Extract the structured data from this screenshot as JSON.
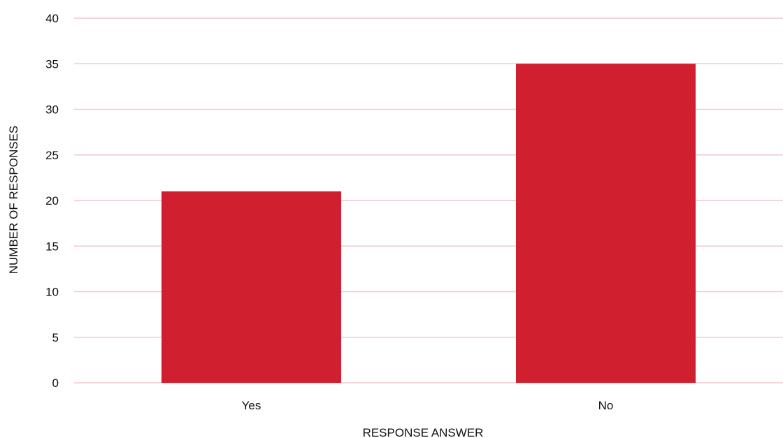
{
  "chart_data": {
    "type": "bar",
    "categories": [
      "Yes",
      "No"
    ],
    "values": [
      21,
      35
    ],
    "xlabel": "RESPONSE ANSWER",
    "ylabel": "NUMBER OF RESPONSES",
    "ylim": [
      0,
      40
    ],
    "yticks": [
      0,
      5,
      10,
      15,
      20,
      25,
      30,
      35,
      40
    ],
    "grid": true,
    "legend": "none",
    "colors": {
      "bar": "#d01f2e",
      "grid": "#f2c9cc",
      "text": "#111111"
    }
  }
}
